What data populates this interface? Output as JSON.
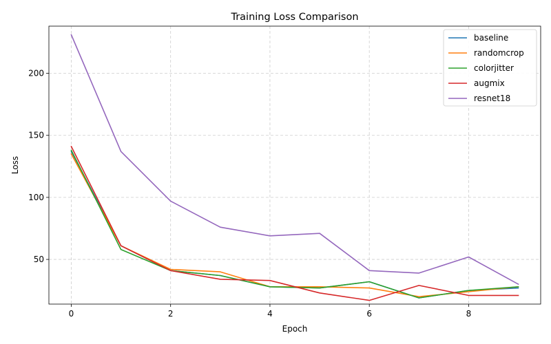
{
  "chart_data": {
    "type": "line",
    "title": "Training Loss Comparison",
    "xlabel": "Epoch",
    "ylabel": "Loss",
    "x": [
      0,
      1,
      2,
      3,
      4,
      5,
      6,
      7,
      8,
      9
    ],
    "xlim": [
      -0.45,
      9.45
    ],
    "ylim": [
      14,
      238
    ],
    "xticks": [
      0,
      2,
      4,
      6,
      8
    ],
    "yticks": [
      50,
      100,
      150,
      200
    ],
    "grid": true,
    "legend_position": "top-right",
    "series": [
      {
        "name": "baseline",
        "color": "#1f77b4",
        "values": [
          137,
          61,
          41,
          37,
          28,
          27,
          32,
          19,
          25,
          27
        ]
      },
      {
        "name": "randomcrop",
        "color": "#ff7f0e",
        "values": [
          135,
          61,
          42,
          40,
          28,
          28,
          27,
          20,
          24,
          28
        ]
      },
      {
        "name": "colorjitter",
        "color": "#2ca02c",
        "values": [
          138,
          58,
          41,
          37,
          28,
          27,
          32,
          19,
          25,
          28
        ]
      },
      {
        "name": "augmix",
        "color": "#d62728",
        "values": [
          141,
          61,
          41,
          34,
          33,
          23,
          17,
          29,
          21,
          21
        ]
      },
      {
        "name": "resnet18",
        "color": "#9467bd",
        "values": [
          231,
          137,
          97,
          76,
          69,
          71,
          41,
          39,
          52,
          30
        ]
      }
    ]
  }
}
